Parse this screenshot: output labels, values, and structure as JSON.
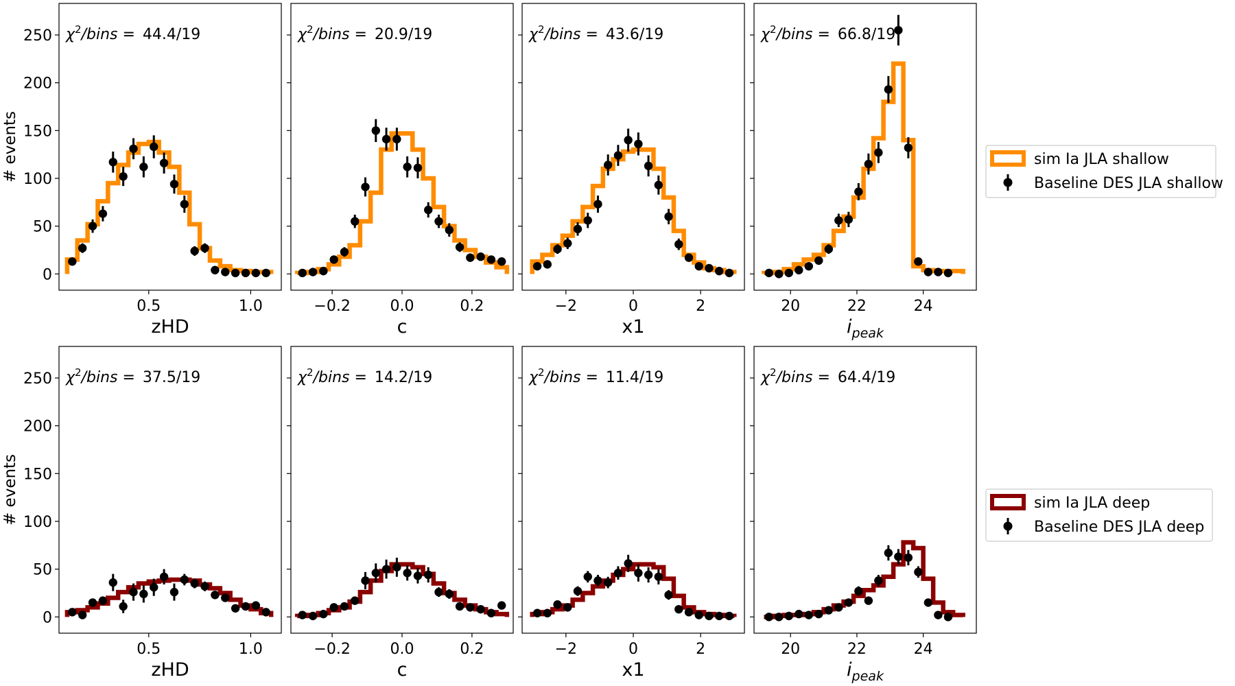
{
  "figure": {
    "ylabel": "# events",
    "ylim": [
      -17,
      283
    ],
    "yticks": [
      0,
      50,
      100,
      150,
      200,
      250
    ]
  },
  "panels_meta": [
    {
      "xlabel": "zHD",
      "xlabel_html": "zHD",
      "xlim": [
        0.06,
        1.15
      ],
      "xticks": [
        0.5,
        1.0
      ],
      "xtick_labels": [
        "0.5",
        "1.0"
      ]
    },
    {
      "xlabel": "c",
      "xlabel_html": "c",
      "xlim": [
        -0.318,
        0.318
      ],
      "xticks": [
        -0.2,
        0.0,
        0.2
      ],
      "xtick_labels": [
        "−0.2",
        "0.0",
        "0.2"
      ]
    },
    {
      "xlabel": "x1",
      "xlabel_html": "x1",
      "xlim": [
        -3.3,
        3.3
      ],
      "xticks": [
        -2,
        0,
        2
      ],
      "xtick_labels": [
        "−2",
        "0",
        "2"
      ]
    },
    {
      "xlabel": "i_peak",
      "xlabel_html": "i<sub>peak</sub>",
      "xlim": [
        18.9,
        25.6
      ],
      "xticks": [
        20,
        22,
        24
      ],
      "xtick_labels": [
        "20",
        "22",
        "24"
      ]
    }
  ],
  "rows": [
    {
      "legend": {
        "sim_label": "sim Ia JLA shallow",
        "data_label": "Baseline DES JLA shallow",
        "sim_color": "#ff8c00"
      },
      "chi2": [
        "44.4/19",
        "20.9/19",
        "43.6/19",
        "66.8/19"
      ]
    },
    {
      "legend": {
        "sim_label": "sim Ia JLA deep",
        "data_label": "Baseline DES JLA deep",
        "sim_color": "#8b0000"
      },
      "chi2": [
        "37.5/19",
        "14.2/19",
        "11.4/19",
        "64.4/19"
      ]
    }
  ],
  "chart_data": [
    {
      "type": "histogram+errorbar",
      "row": 0,
      "col": 0,
      "xlabel": "zHD",
      "ylabel": "# events",
      "xlim": [
        0.06,
        1.15
      ],
      "ylim": [
        -17,
        283
      ],
      "chi2_label": "χ²/bins = 44.4/19",
      "sim": {
        "name": "sim Ia JLA shallow",
        "color": "#ff8c00",
        "edges": [
          0.1,
          0.15,
          0.2,
          0.25,
          0.3,
          0.35,
          0.4,
          0.45,
          0.5,
          0.55,
          0.6,
          0.65,
          0.7,
          0.75,
          0.8,
          0.85,
          0.9,
          0.95,
          1.0,
          1.05,
          1.1
        ],
        "values": [
          15,
          35,
          52,
          76,
          95,
          114,
          127,
          136,
          138,
          127,
          112,
          85,
          52,
          27,
          14,
          8,
          4,
          3,
          2,
          2
        ]
      },
      "data": {
        "name": "Baseline DES JLA shallow",
        "x": [
          0.125,
          0.175,
          0.225,
          0.275,
          0.325,
          0.375,
          0.425,
          0.475,
          0.525,
          0.575,
          0.625,
          0.675,
          0.725,
          0.775,
          0.825,
          0.875,
          0.925,
          0.975,
          1.025,
          1.075
        ],
        "y": [
          13,
          27,
          50,
          63,
          117,
          102,
          131,
          112,
          133,
          116,
          94,
          73,
          24,
          27,
          4,
          2,
          1,
          1,
          1,
          1
        ],
        "yerr": [
          4,
          5,
          7,
          8,
          11,
          10,
          11,
          11,
          12,
          11,
          10,
          9,
          5,
          5,
          2,
          1,
          1,
          1,
          1,
          1
        ]
      }
    },
    {
      "type": "histogram+errorbar",
      "row": 0,
      "col": 1,
      "xlabel": "c",
      "ylabel": "# events",
      "xlim": [
        -0.318,
        0.318
      ],
      "ylim": [
        -17,
        283
      ],
      "chi2_label": "χ²/bins = 20.9/19",
      "sim": {
        "name": "sim Ia JLA shallow",
        "color": "#ff8c00",
        "edges": [
          -0.3,
          -0.27,
          -0.24,
          -0.21,
          -0.18,
          -0.15,
          -0.12,
          -0.09,
          -0.06,
          -0.03,
          0.0,
          0.03,
          0.06,
          0.09,
          0.12,
          0.15,
          0.18,
          0.21,
          0.24,
          0.27,
          0.3
        ],
        "values": [
          1,
          2,
          5,
          10,
          18,
          30,
          55,
          85,
          130,
          147,
          147,
          130,
          100,
          70,
          50,
          35,
          25,
          18,
          12,
          7
        ]
      },
      "data": {
        "name": "Baseline DES JLA shallow",
        "x": [
          -0.285,
          -0.255,
          -0.225,
          -0.195,
          -0.165,
          -0.135,
          -0.105,
          -0.075,
          -0.045,
          -0.015,
          0.015,
          0.045,
          0.075,
          0.105,
          0.135,
          0.165,
          0.195,
          0.225,
          0.255,
          0.285
        ],
        "y": [
          1,
          2,
          3,
          15,
          23,
          55,
          91,
          150,
          141,
          141,
          112,
          111,
          67,
          55,
          46,
          28,
          17,
          18,
          15,
          13
        ],
        "yerr": [
          1,
          1,
          2,
          4,
          5,
          7,
          10,
          12,
          12,
          12,
          11,
          11,
          8,
          7,
          7,
          5,
          4,
          4,
          4,
          4
        ]
      }
    },
    {
      "type": "histogram+errorbar",
      "row": 0,
      "col": 2,
      "xlabel": "x1",
      "ylabel": "# events",
      "xlim": [
        -3.3,
        3.3
      ],
      "ylim": [
        -17,
        283
      ],
      "chi2_label": "χ²/bins = 43.6/19",
      "sim": {
        "name": "sim Ia JLA shallow",
        "color": "#ff8c00",
        "edges": [
          -3.0,
          -2.7,
          -2.4,
          -2.1,
          -1.8,
          -1.5,
          -1.2,
          -0.9,
          -0.6,
          -0.3,
          0.0,
          0.3,
          0.6,
          0.9,
          1.2,
          1.5,
          1.8,
          2.1,
          2.4,
          2.7,
          3.0
        ],
        "values": [
          13,
          20,
          30,
          40,
          55,
          70,
          92,
          110,
          120,
          128,
          130,
          130,
          110,
          80,
          45,
          20,
          12,
          6,
          4,
          2
        ]
      },
      "data": {
        "name": "Baseline DES JLA shallow",
        "x": [
          -2.85,
          -2.55,
          -2.25,
          -1.95,
          -1.65,
          -1.35,
          -1.05,
          -0.75,
          -0.45,
          -0.15,
          0.15,
          0.45,
          0.75,
          1.05,
          1.35,
          1.65,
          1.95,
          2.25,
          2.55,
          2.85
        ],
        "y": [
          8,
          10,
          26,
          32,
          47,
          56,
          73,
          114,
          124,
          140,
          136,
          113,
          93,
          60,
          31,
          17,
          8,
          6,
          3,
          1
        ],
        "yerr": [
          3,
          3,
          5,
          6,
          7,
          8,
          9,
          11,
          11,
          12,
          12,
          11,
          10,
          8,
          6,
          4,
          3,
          2,
          2,
          1
        ]
      }
    },
    {
      "type": "histogram+errorbar",
      "row": 0,
      "col": 3,
      "xlabel": "i_peak",
      "ylabel": "# events",
      "xlim": [
        18.9,
        25.6
      ],
      "ylim": [
        -17,
        283
      ],
      "chi2_label": "χ²/bins = 66.8/19",
      "sim": {
        "name": "sim Ia JLA shallow",
        "color": "#ff8c00",
        "edges": [
          19.2,
          19.5,
          19.8,
          20.1,
          20.4,
          20.7,
          21.0,
          21.3,
          21.6,
          21.9,
          22.2,
          22.5,
          22.8,
          23.1,
          23.4,
          23.7,
          24.0,
          24.3,
          24.6,
          24.9,
          25.2
        ],
        "values": [
          1,
          2,
          5,
          10,
          15,
          20,
          30,
          45,
          60,
          80,
          110,
          142,
          180,
          220,
          140,
          8,
          4,
          3,
          3,
          3
        ]
      },
      "data": {
        "name": "Baseline DES JLA shallow",
        "x": [
          19.35,
          19.65,
          19.95,
          20.25,
          20.55,
          20.85,
          21.15,
          21.45,
          21.75,
          22.05,
          22.35,
          22.65,
          22.95,
          23.25,
          23.55,
          23.85,
          24.15,
          24.45,
          24.75
        ],
        "y": [
          1,
          0,
          1,
          4,
          8,
          14,
          26,
          56,
          57,
          86,
          115,
          127,
          193,
          255,
          132,
          13,
          2,
          2,
          1
        ],
        "yerr": [
          1,
          1,
          1,
          2,
          3,
          4,
          5,
          7,
          8,
          9,
          11,
          11,
          14,
          16,
          11,
          4,
          1,
          1,
          1
        ]
      }
    },
    {
      "type": "histogram+errorbar",
      "row": 1,
      "col": 0,
      "xlabel": "zHD",
      "ylabel": "# events",
      "xlim": [
        0.06,
        1.15
      ],
      "ylim": [
        -17,
        283
      ],
      "chi2_label": "χ²/bins = 37.5/19",
      "sim": {
        "name": "sim Ia JLA deep",
        "color": "#8b0000",
        "edges": [
          0.1,
          0.15,
          0.2,
          0.25,
          0.3,
          0.35,
          0.4,
          0.45,
          0.5,
          0.55,
          0.6,
          0.65,
          0.7,
          0.75,
          0.8,
          0.85,
          0.9,
          0.95,
          1.0,
          1.05,
          1.1
        ],
        "values": [
          5,
          7,
          10,
          14,
          20,
          26,
          31,
          35,
          37,
          38,
          39,
          39,
          38,
          34,
          30,
          25,
          18,
          12,
          8,
          4
        ]
      },
      "data": {
        "name": "Baseline DES JLA deep",
        "x": [
          0.125,
          0.175,
          0.225,
          0.275,
          0.325,
          0.375,
          0.425,
          0.475,
          0.525,
          0.575,
          0.625,
          0.675,
          0.725,
          0.775,
          0.825,
          0.875,
          0.925,
          0.975,
          1.025,
          1.075
        ],
        "y": [
          5,
          2,
          15,
          17,
          36,
          11,
          26,
          24,
          31,
          42,
          26,
          39,
          35,
          32,
          23,
          20,
          9,
          11,
          12,
          5
        ],
        "yerr": [
          2,
          1,
          4,
          4,
          9,
          7,
          9,
          9,
          9,
          8,
          9,
          6,
          5,
          5,
          4,
          4,
          3,
          3,
          3,
          2
        ]
      }
    },
    {
      "type": "histogram+errorbar",
      "row": 1,
      "col": 1,
      "xlabel": "c",
      "ylabel": "# events",
      "xlim": [
        -0.318,
        0.318
      ],
      "ylim": [
        -17,
        283
      ],
      "chi2_label": "χ²/bins = 14.2/19",
      "sim": {
        "name": "sim Ia JLA deep",
        "color": "#8b0000",
        "edges": [
          -0.3,
          -0.27,
          -0.24,
          -0.21,
          -0.18,
          -0.15,
          -0.12,
          -0.09,
          -0.06,
          -0.03,
          0.0,
          0.03,
          0.06,
          0.09,
          0.12,
          0.15,
          0.18,
          0.21,
          0.24,
          0.27,
          0.3
        ],
        "values": [
          1,
          2,
          4,
          7,
          10,
          16,
          26,
          38,
          48,
          55,
          55,
          52,
          45,
          35,
          25,
          18,
          12,
          8,
          5,
          3
        ]
      },
      "data": {
        "name": "Baseline DES JLA deep",
        "x": [
          -0.285,
          -0.255,
          -0.225,
          -0.195,
          -0.165,
          -0.135,
          -0.105,
          -0.075,
          -0.045,
          -0.015,
          0.015,
          0.045,
          0.075,
          0.105,
          0.135,
          0.165,
          0.195,
          0.225,
          0.255,
          0.285
        ],
        "y": [
          2,
          1,
          3,
          10,
          11,
          17,
          38,
          46,
          50,
          52,
          46,
          43,
          44,
          26,
          24,
          11,
          10,
          8,
          4,
          12
        ],
        "yerr": [
          1,
          1,
          2,
          3,
          3,
          4,
          9,
          10,
          10,
          10,
          8,
          8,
          8,
          5,
          5,
          3,
          3,
          3,
          2,
          3
        ]
      }
    },
    {
      "type": "histogram+errorbar",
      "row": 1,
      "col": 2,
      "xlabel": "x1",
      "ylabel": "# events",
      "xlim": [
        -3.3,
        3.3
      ],
      "ylim": [
        -17,
        283
      ],
      "chi2_label": "χ²/bins = 11.4/19",
      "sim": {
        "name": "sim Ia JLA deep",
        "color": "#8b0000",
        "edges": [
          -3.0,
          -2.7,
          -2.4,
          -2.1,
          -1.8,
          -1.5,
          -1.2,
          -0.9,
          -0.6,
          -0.3,
          0.0,
          0.3,
          0.6,
          0.9,
          1.2,
          1.5,
          1.8,
          2.1,
          2.4,
          2.7,
          3.0
        ],
        "values": [
          3,
          5,
          8,
          12,
          18,
          25,
          32,
          38,
          44,
          50,
          55,
          55,
          52,
          40,
          22,
          10,
          5,
          3,
          2,
          1
        ]
      },
      "data": {
        "name": "Baseline DES JLA deep",
        "x": [
          -2.85,
          -2.55,
          -2.25,
          -1.95,
          -1.65,
          -1.35,
          -1.05,
          -0.75,
          -0.45,
          -0.15,
          0.15,
          0.45,
          0.75,
          1.05,
          1.35,
          1.65,
          1.95,
          2.25,
          2.55,
          2.85
        ],
        "y": [
          4,
          4,
          13,
          10,
          27,
          42,
          38,
          36,
          46,
          56,
          46,
          44,
          42,
          23,
          8,
          5,
          2,
          1,
          1,
          1
        ],
        "yerr": [
          2,
          2,
          3,
          3,
          5,
          6,
          6,
          6,
          7,
          9,
          9,
          8,
          8,
          5,
          3,
          2,
          1,
          1,
          1,
          1
        ]
      }
    },
    {
      "type": "histogram+errorbar",
      "row": 1,
      "col": 3,
      "xlabel": "i_peak",
      "ylabel": "# events",
      "xlim": [
        18.9,
        25.6
      ],
      "ylim": [
        -17,
        283
      ],
      "chi2_label": "χ²/bins = 64.4/19",
      "sim": {
        "name": "sim Ia JLA deep",
        "color": "#8b0000",
        "edges": [
          19.2,
          19.5,
          19.8,
          20.1,
          20.4,
          20.7,
          21.0,
          21.3,
          21.6,
          21.9,
          22.2,
          22.5,
          22.8,
          23.1,
          23.4,
          23.7,
          24.0,
          24.3,
          24.6,
          24.9,
          25.2
        ],
        "values": [
          0,
          1,
          2,
          2,
          3,
          5,
          8,
          12,
          16,
          22,
          28,
          33,
          42,
          55,
          78,
          72,
          40,
          15,
          5,
          2
        ]
      },
      "data": {
        "name": "Baseline DES JLA deep",
        "x": [
          19.35,
          19.65,
          19.95,
          20.25,
          20.55,
          20.85,
          21.15,
          21.45,
          21.75,
          22.05,
          22.35,
          22.65,
          22.95,
          23.25,
          23.55,
          23.85,
          24.15,
          24.45,
          24.75
        ],
        "y": [
          0,
          0,
          1,
          3,
          2,
          3,
          7,
          10,
          15,
          27,
          17,
          38,
          67,
          63,
          62,
          47,
          15,
          2,
          0
        ],
        "yerr": [
          1,
          1,
          1,
          1,
          1,
          2,
          3,
          3,
          4,
          5,
          4,
          6,
          8,
          8,
          8,
          6,
          4,
          1,
          1
        ]
      }
    }
  ]
}
